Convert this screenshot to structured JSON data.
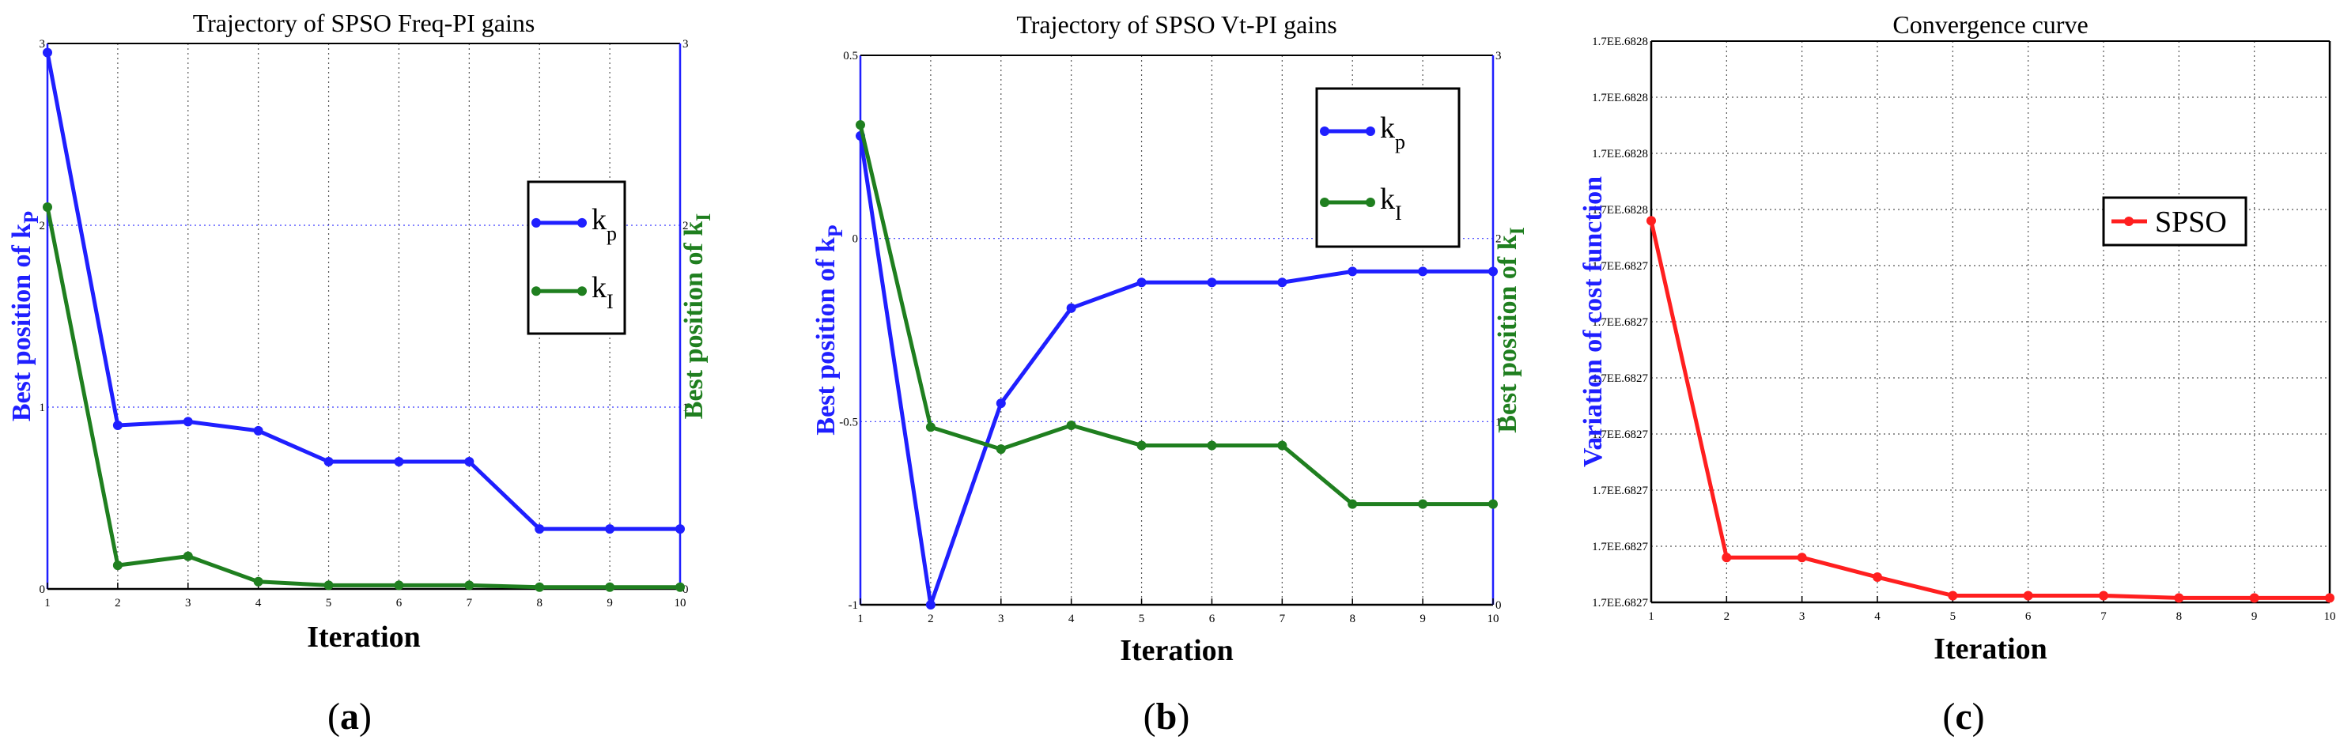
{
  "chart_data": [
    {
      "type": "line",
      "panel": "a",
      "caption_letter": "a",
      "title": "Trajectory of SPSO Freq-PI gains",
      "xlabel": "Iteration",
      "ylabel_left": "Best position of k",
      "ylabel_left_sub": "P",
      "ylabel_right": "Best position of k",
      "ylabel_right_sub": "I",
      "x": [
        1,
        2,
        3,
        4,
        5,
        6,
        7,
        8,
        9,
        10
      ],
      "x_tick_labels": [
        "1",
        "2",
        "3",
        "4",
        "5",
        "6",
        "7",
        "8",
        "9",
        "10"
      ],
      "xlim": [
        1,
        10
      ],
      "ylim_left": [
        0,
        3
      ],
      "ylim_right": [
        0,
        3
      ],
      "left_ticks": [
        0,
        1,
        2,
        3
      ],
      "right_ticks": [
        0,
        1,
        2,
        3
      ],
      "grid": true,
      "legend_position": "upper-right",
      "series": [
        {
          "name": "k",
          "sub": "p",
          "axis": "left",
          "color": "#1f1fff",
          "values": [
            2.95,
            0.9,
            0.92,
            0.87,
            0.7,
            0.7,
            0.7,
            0.33,
            0.33,
            0.33
          ]
        },
        {
          "name": "k",
          "sub": "I",
          "axis": "right",
          "color": "#1f7f1f",
          "values": [
            2.1,
            0.13,
            0.18,
            0.04,
            0.02,
            0.02,
            0.02,
            0.01,
            0.01,
            0.01
          ]
        }
      ]
    },
    {
      "type": "line",
      "panel": "b",
      "caption_letter": "b",
      "title": "Trajectory of SPSO Vt-PI gains",
      "xlabel": "Iteration",
      "ylabel_left": "Best position of k",
      "ylabel_left_sub": "P",
      "ylabel_right": "Best position of k",
      "ylabel_right_sub": "I",
      "x": [
        1,
        2,
        3,
        4,
        5,
        6,
        7,
        8,
        9,
        10
      ],
      "x_tick_labels": [
        "1",
        "2",
        "3",
        "4",
        "5",
        "6",
        "7",
        "8",
        "9",
        "10"
      ],
      "xlim": [
        1,
        10
      ],
      "ylim_left": [
        -1,
        0.5
      ],
      "ylim_right": [
        0,
        3
      ],
      "left_ticks": [
        -1,
        -0.5,
        0,
        0.5
      ],
      "right_ticks": [
        0,
        1,
        2,
        3
      ],
      "grid": true,
      "legend_position": "upper-right",
      "series": [
        {
          "name": "k",
          "sub": "p",
          "axis": "left",
          "color": "#1f1fff",
          "values": [
            0.28,
            -1.0,
            -0.45,
            -0.19,
            -0.12,
            -0.12,
            -0.12,
            -0.09,
            -0.09,
            -0.09
          ]
        },
        {
          "name": "k",
          "sub": "I",
          "axis": "right",
          "color": "#1f7f1f",
          "values": [
            2.62,
            0.97,
            0.85,
            0.98,
            0.87,
            0.87,
            0.87,
            0.55,
            0.55,
            0.55
          ]
        }
      ]
    },
    {
      "type": "line",
      "panel": "c",
      "caption_letter": "c",
      "title": "Convergence curve",
      "xlabel": "Iteration",
      "ylabel_left": "Variation of cost function",
      "x": [
        1,
        2,
        3,
        4,
        5,
        6,
        7,
        8,
        9,
        10
      ],
      "x_tick_labels": [
        "1",
        "2",
        "3",
        "4",
        "5",
        "6",
        "7",
        "8",
        "9",
        "10"
      ],
      "xlim": [
        1,
        10
      ],
      "ylim_left": [
        0,
        10
      ],
      "left_ticks": [
        0,
        1,
        2,
        3,
        4,
        5,
        6,
        7,
        8,
        9,
        10
      ],
      "left_tick_labels": [
        "1.7EE.6827",
        "1.7EE.6827",
        "1.7EE.6827",
        "1.7EE.6827",
        "1.7EE.6827",
        "1.7EE.6827",
        "1.7EE.6827",
        "1.7EE.6828",
        "1.7EE.6828",
        "1.7EE.6828",
        "1.7EE.6828"
      ],
      "grid": true,
      "legend_position": "upper-right",
      "series": [
        {
          "name": "SPSO",
          "axis": "left",
          "color": "#ff1f1f",
          "values": [
            6.8,
            0.8,
            0.8,
            0.45,
            0.12,
            0.12,
            0.12,
            0.08,
            0.08,
            0.08
          ]
        }
      ]
    }
  ]
}
